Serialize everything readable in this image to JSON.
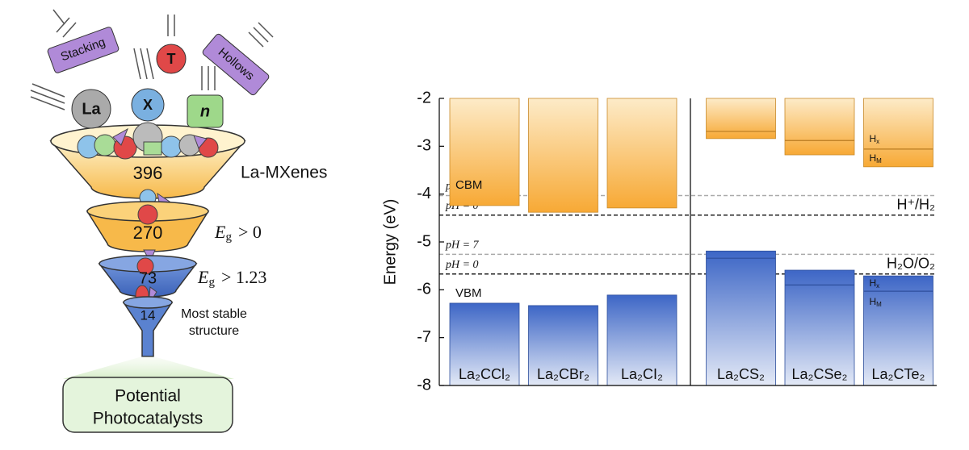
{
  "funnel": {
    "tags": [
      "Stacking",
      "T",
      "Hollows",
      "La",
      "X",
      "n"
    ],
    "stages": [
      {
        "count": 396,
        "label": "La-MXenes"
      },
      {
        "count": 270,
        "criterion": {
          "symbol": "E",
          "sub": "g",
          "text": "> 0"
        }
      },
      {
        "count": 73,
        "criterion": {
          "symbol": "E",
          "sub": "g",
          "text": "> 1.23"
        }
      },
      {
        "count": 14,
        "label": [
          "Most stable",
          "structure"
        ]
      }
    ],
    "result": [
      "Potential",
      "Photocatalysts"
    ]
  },
  "chart_data": {
    "type": "band",
    "ylabel": "Energy (eV)",
    "ylim": [
      -8,
      -2
    ],
    "yticks": [
      -2,
      -3,
      -4,
      -5,
      -6,
      -7,
      -8
    ],
    "categories": [
      "La₂CCl₂",
      "La₂CBr₂",
      "La₂CI₂",
      "La₂CS₂",
      "La₂CSe₂",
      "La₂CTe₂"
    ],
    "series": [
      {
        "name": "CBM",
        "color": "#f7a935",
        "values": [
          -4.24,
          -4.38,
          -4.29,
          -2.84,
          -3.18,
          -3.43
        ],
        "inner_values": [
          null,
          null,
          null,
          -2.69,
          -2.88,
          -3.06
        ]
      },
      {
        "name": "VBM",
        "color": "#3d66c6",
        "values": [
          -6.28,
          -6.33,
          -6.11,
          -5.19,
          -5.59,
          -5.71
        ],
        "inner_values": [
          null,
          null,
          null,
          -5.34,
          -5.9,
          -6.03
        ]
      }
    ],
    "annotations": [
      {
        "base": "H",
        "sub": "x"
      },
      {
        "base": "H",
        "sub": "M"
      }
    ],
    "ref_levels": [
      {
        "name": "pH = 0",
        "color": "#222222",
        "values": [
          -4.44,
          -5.67
        ]
      },
      {
        "name": "pH = 7",
        "color": "#aaaaaa",
        "values": [
          -4.03,
          -5.26
        ]
      }
    ],
    "ref_labels": [
      "H⁺/H₂",
      "H₂O/O₂"
    ]
  }
}
